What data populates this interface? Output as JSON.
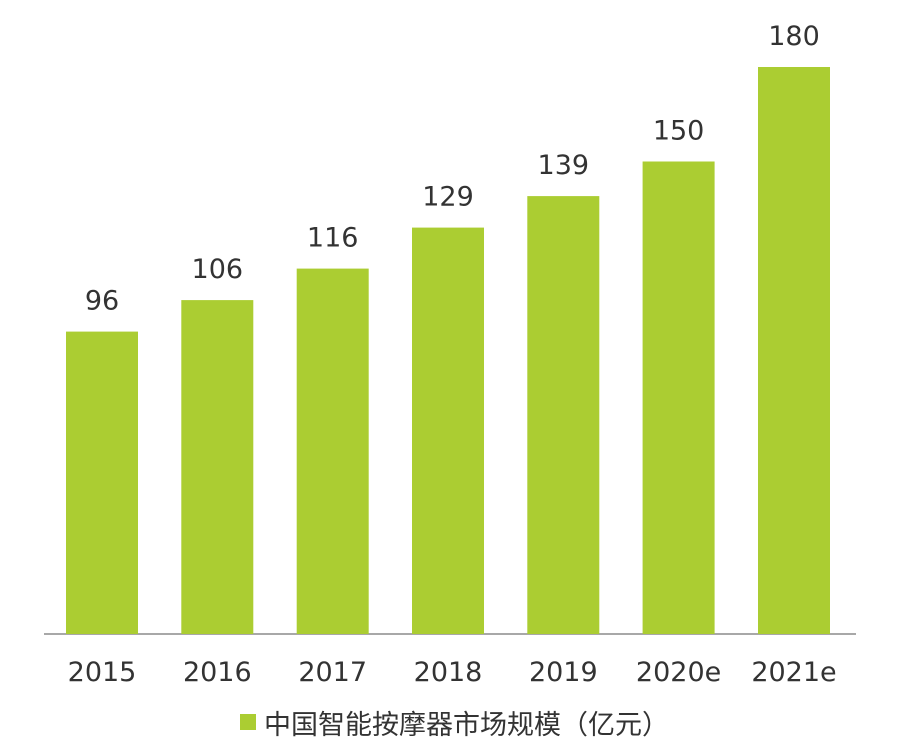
{
  "chart_data": {
    "type": "bar",
    "categories": [
      "2015",
      "2016",
      "2017",
      "2018",
      "2019",
      "2020e",
      "2021e"
    ],
    "series": [
      {
        "name": "中国智能按摩器市场规模（亿元）",
        "values": [
          96,
          106,
          116,
          129,
          139,
          150,
          180
        ]
      }
    ],
    "data_labels": [
      "96",
      "106",
      "116",
      "129",
      "139",
      "150",
      "180"
    ],
    "legend": {
      "position": "bottom",
      "label": "中国智能按摩器市场规模（亿元）"
    },
    "grid": false,
    "y_axis_visible": false,
    "ylim": [
      0,
      180
    ]
  },
  "colors": {
    "bar": "#abcd32",
    "axis": "#8c8c8c",
    "text": "#333333"
  }
}
